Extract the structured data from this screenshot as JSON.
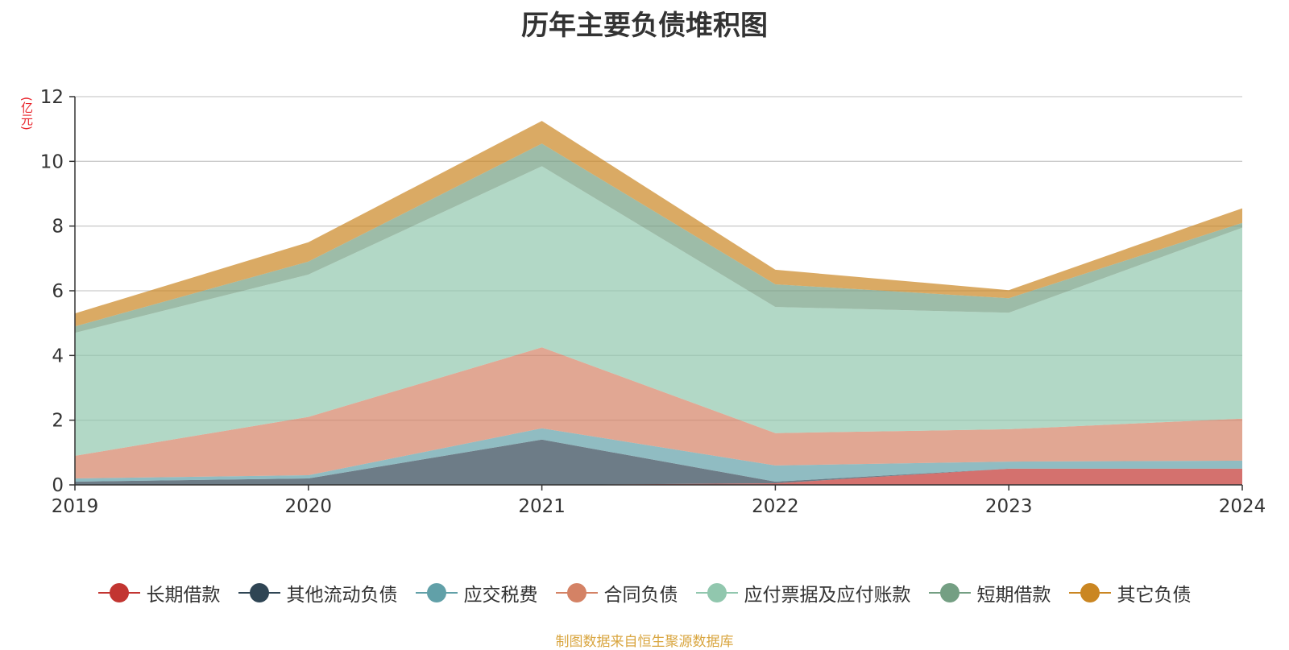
{
  "title": "历年主要负债堆积图",
  "unit": "(亿元)",
  "source": "制图数据来自恒生聚源数据库",
  "chart_data": {
    "type": "area",
    "stacked": true,
    "title": "历年主要负债堆积图",
    "ylabel": "(亿元)",
    "xlabel": "",
    "x": [
      "2019",
      "2020",
      "2021",
      "2022",
      "2023",
      "2024"
    ],
    "ylim": [
      0,
      12
    ],
    "yticks": [
      0,
      2,
      4,
      6,
      8,
      10,
      12
    ],
    "grid": true,
    "legend_position": "bottom",
    "series": [
      {
        "name": "长期借款",
        "color": "#c23531",
        "values": [
          0,
          0,
          0,
          0.05,
          0.5,
          0.5
        ]
      },
      {
        "name": "其他流动负债",
        "color": "#2f4554",
        "values": [
          0.1,
          0.2,
          1.4,
          0.05,
          0,
          0
        ]
      },
      {
        "name": "应交税费",
        "color": "#61a0a8",
        "values": [
          0.1,
          0.1,
          0.35,
          0.5,
          0.22,
          0.25
        ]
      },
      {
        "name": "合同负债",
        "color": "#d48265",
        "values": [
          0.7,
          1.8,
          2.5,
          1.0,
          1.0,
          1.3
        ]
      },
      {
        "name": "应付票据及应付账款",
        "color": "#91c7ae",
        "values": [
          3.8,
          4.4,
          5.6,
          3.9,
          3.6,
          5.9
        ]
      },
      {
        "name": "短期借款",
        "color": "#749f83",
        "values": [
          0.2,
          0.4,
          0.7,
          0.7,
          0.45,
          0.15
        ]
      },
      {
        "name": "其它负债",
        "color": "#ca8622",
        "values": [
          0.4,
          0.6,
          0.7,
          0.45,
          0.25,
          0.45
        ]
      }
    ]
  }
}
